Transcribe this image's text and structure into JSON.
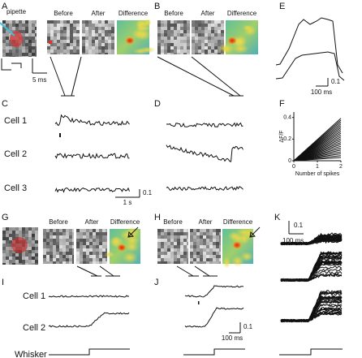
{
  "panel_letters": [
    "A",
    "B",
    "C",
    "D",
    "E",
    "F",
    "G",
    "H",
    "I",
    "J",
    "K"
  ],
  "panel_a": {
    "pipette": "pipette",
    "images": [
      "Before",
      "After",
      "Difference"
    ],
    "scale_time": "5 ms"
  },
  "panel_b": {
    "images": [
      "Before",
      "After",
      "Difference"
    ]
  },
  "panel_c": {
    "cells": [
      "Cell 1",
      "Cell 2",
      "Cell 3"
    ],
    "scale_time": "1 s",
    "scale_amp": "0.1"
  },
  "panel_e": {
    "scale_amp": "0.1",
    "scale_time": "100 ms"
  },
  "panel_f": {
    "ylabel": "ΔF/F",
    "xlabel": "Number of spikes",
    "xlim": [
      0,
      2
    ],
    "ylim": [
      0,
      0.45
    ],
    "xticks": [
      0,
      1,
      2
    ],
    "yticks": [
      0,
      0.2,
      0.4
    ]
  },
  "panel_g": {
    "images": [
      "Before",
      "After",
      "Difference"
    ]
  },
  "panel_h": {
    "images": [
      "Before",
      "After",
      "Difference"
    ]
  },
  "panel_i": {
    "cells": [
      "Cell 1",
      "Cell 2"
    ],
    "stimulus": "Whisker"
  },
  "panel_j": {
    "scale_amp": "0.1",
    "scale_time": "100 ms"
  },
  "panel_k": {
    "scale_amp": "0.1",
    "scale_time": "100 ms"
  }
}
